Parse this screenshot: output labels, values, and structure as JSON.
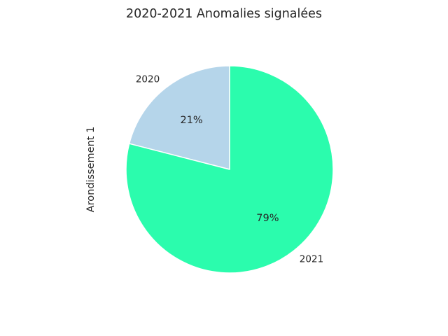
{
  "chart_data": {
    "type": "pie",
    "title": "2020-2021 Anomalies signalées",
    "ylabel": "Arondissement 1",
    "categories": [
      "2020",
      "2021"
    ],
    "values": [
      21,
      79
    ],
    "percent_labels": [
      "21%",
      "79%"
    ],
    "colors": [
      "#b5d5ea",
      "#2bfcad"
    ],
    "edge_color": "#ffffff",
    "start_angle_deg": 90,
    "direction": "counterclockwise"
  }
}
